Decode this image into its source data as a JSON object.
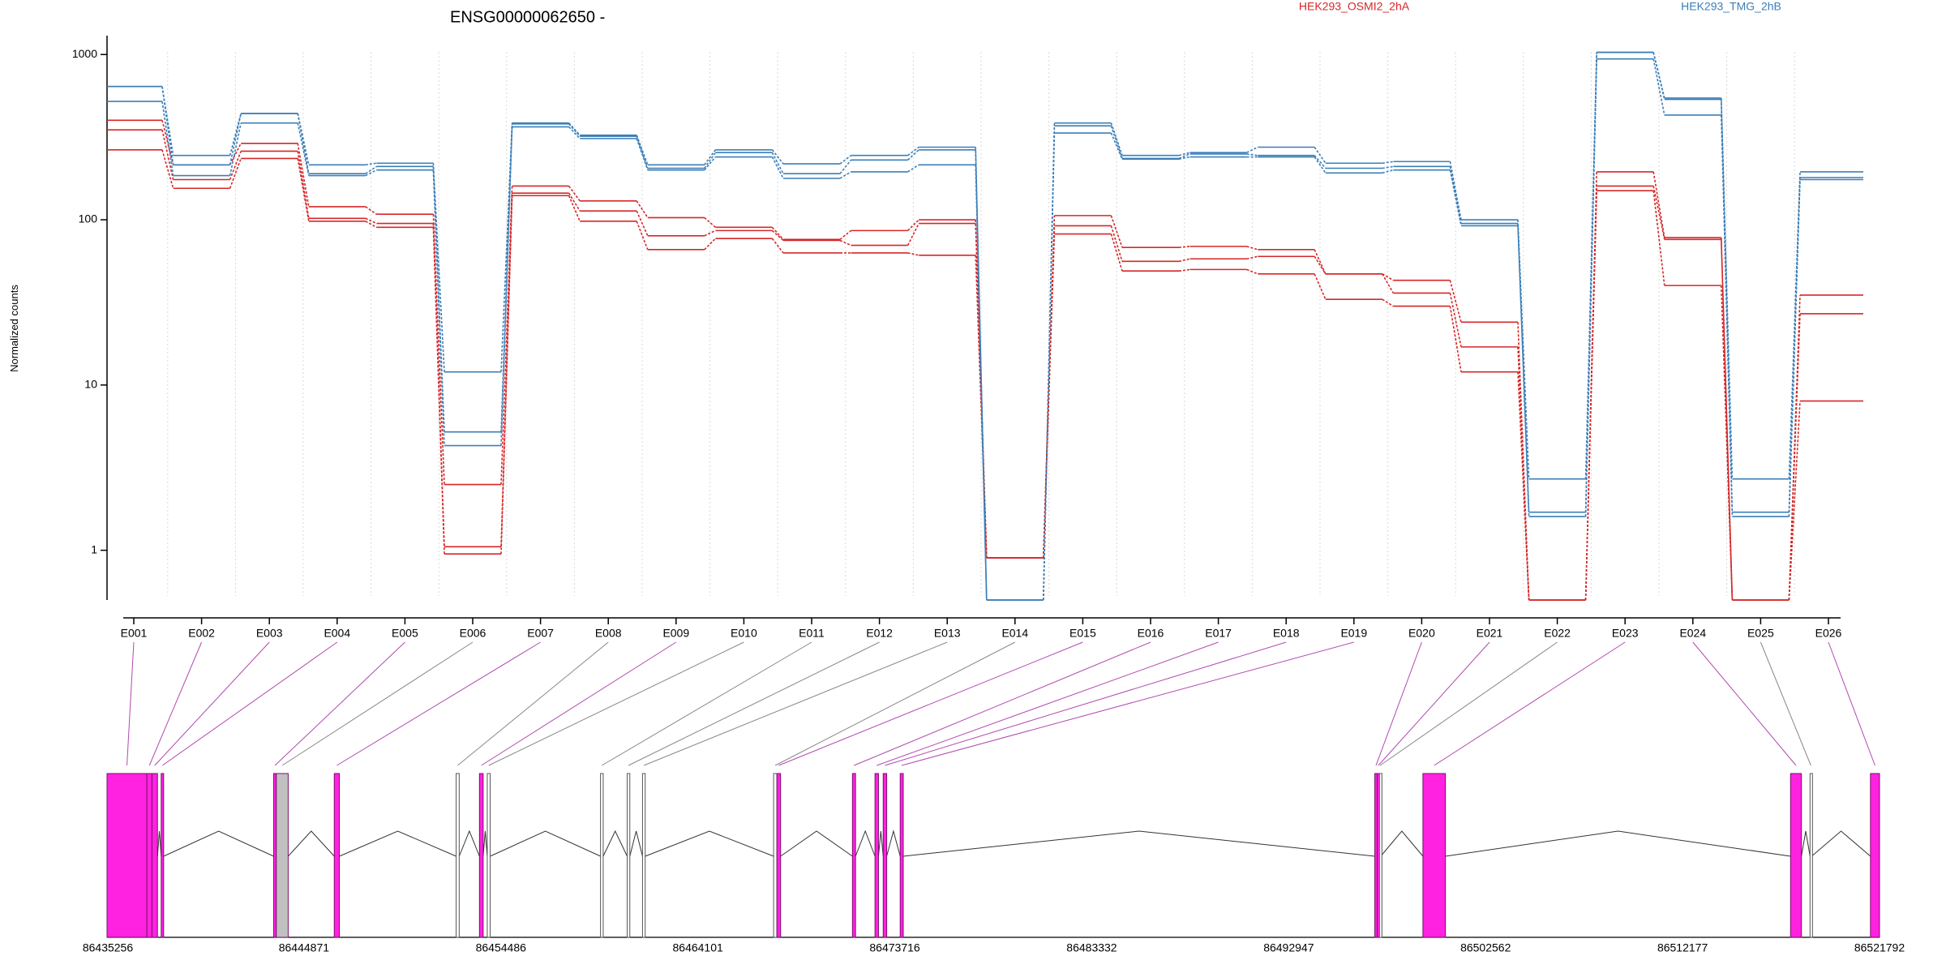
{
  "chart_data": {
    "type": "line",
    "title": "ENSG00000062650 -",
    "ylabel": "Normalized counts",
    "xlabel": "",
    "yscale": "log",
    "ylim": [
      0.5,
      1300
    ],
    "yticks": [
      {
        "value": 1,
        "label": "1"
      },
      {
        "value": 10,
        "label": "10"
      },
      {
        "value": 100,
        "label": "100"
      },
      {
        "value": 1000,
        "label": "1000"
      }
    ],
    "grid": "vertical-dotted",
    "categories": [
      "E001",
      "E002",
      "E003",
      "E004",
      "E005",
      "E006",
      "E007",
      "E008",
      "E009",
      "E010",
      "E011",
      "E012",
      "E013",
      "E014",
      "E015",
      "E016",
      "E017",
      "E018",
      "E019",
      "E020",
      "E021",
      "E022",
      "E023",
      "E024",
      "E025",
      "E026"
    ],
    "series": [
      {
        "name": "HEK293_OSMI2_2hA",
        "color": "#d62728",
        "values": [
          400,
          215,
          290,
          120,
          108,
          2.5,
          160,
          130,
          103,
          90,
          76,
          86,
          100,
          0.9,
          106,
          68,
          69,
          66,
          47,
          43,
          24,
          0.5,
          195,
          78,
          0.5,
          35
        ]
      },
      {
        "name": "",
        "color": "#d62728",
        "values": [
          350,
          175,
          260,
          102,
          95,
          1.05,
          145,
          113,
          80,
          86,
          75,
          70,
          95,
          0.9,
          92,
          56,
          58,
          60,
          47,
          36,
          17,
          0.5,
          160,
          76,
          0.5,
          27
        ]
      },
      {
        "name": "",
        "color": "#d62728",
        "values": [
          265,
          155,
          235,
          98,
          90,
          0.95,
          140,
          98,
          66,
          77,
          63,
          63,
          61,
          0.9,
          82,
          49,
          50,
          47,
          33,
          30,
          12,
          0.5,
          150,
          40,
          0.5,
          8
        ]
      },
      {
        "name": "HEK293_TMG_2hB",
        "color": "#3b7fb8",
        "values": [
          640,
          245,
          440,
          215,
          220,
          12,
          385,
          325,
          215,
          265,
          218,
          245,
          275,
          0.5,
          385,
          245,
          255,
          275,
          220,
          225,
          100,
          2.7,
          1030,
          545,
          2.7,
          195
        ]
      },
      {
        "name": "",
        "color": "#3b7fb8",
        "values": [
          640,
          215,
          440,
          190,
          210,
          5.2,
          380,
          320,
          205,
          255,
          190,
          230,
          265,
          0.5,
          370,
          235,
          250,
          245,
          205,
          210,
          95,
          1.7,
          1030,
          535,
          1.7,
          180
        ]
      },
      {
        "name": "",
        "color": "#3b7fb8",
        "values": [
          520,
          185,
          385,
          185,
          200,
          4.3,
          365,
          310,
          200,
          240,
          178,
          195,
          215,
          0.5,
          335,
          233,
          240,
          240,
          192,
          200,
          92,
          1.6,
          940,
          430,
          1.6,
          175
        ]
      }
    ],
    "legend": "top",
    "genome": {
      "tick_labels": [
        "86435256",
        "86444871",
        "86454486",
        "86464101",
        "86473716",
        "86483332",
        "86492947",
        "86502562",
        "86512177",
        "86521792"
      ],
      "start": 86435256,
      "end": 86521792
    },
    "exon_tracks": [
      {
        "exon": "E001",
        "start": 86435256,
        "end": 86437200,
        "color": "#ff22e0"
      },
      {
        "exon": "E002",
        "start": 86437200,
        "end": 86437450,
        "color": "#ff22e0"
      },
      {
        "exon": "E003",
        "start": 86437450,
        "end": 86437720,
        "color": "#ff22e0"
      },
      {
        "exon": "E004",
        "start": 86437900,
        "end": 86438020,
        "color": "#ff22e0"
      },
      {
        "exon": "E005",
        "start": 86443390,
        "end": 86443520,
        "color": "#ff22e0"
      },
      {
        "exon": "E006",
        "start": 86443520,
        "end": 86444100,
        "color": "#c0c0c0"
      },
      {
        "exon": "E007",
        "start": 86446350,
        "end": 86446600,
        "color": "#ff22e0"
      },
      {
        "exon": "E008",
        "start": 86452300,
        "end": 86452450,
        "color": "#ffffff"
      },
      {
        "exon": "E009",
        "start": 86453440,
        "end": 86453620,
        "color": "#ff22e0"
      },
      {
        "exon": "E010",
        "start": 86453820,
        "end": 86453960,
        "color": "#ffffff"
      },
      {
        "exon": "E011",
        "start": 86459350,
        "end": 86459480,
        "color": "#ffffff"
      },
      {
        "exon": "E012",
        "start": 86460650,
        "end": 86460780,
        "color": "#ffffff"
      },
      {
        "exon": "E013",
        "start": 86461400,
        "end": 86461530,
        "color": "#ffffff"
      },
      {
        "exon": "E014",
        "start": 86467800,
        "end": 86467960,
        "color": "#ffffff"
      },
      {
        "exon": "E015",
        "start": 86467960,
        "end": 86468140,
        "color": "#ff22e0"
      },
      {
        "exon": "E016",
        "start": 86471650,
        "end": 86471800,
        "color": "#ff22e0"
      },
      {
        "exon": "E017",
        "start": 86472750,
        "end": 86472920,
        "color": "#ff22e0"
      },
      {
        "exon": "E018",
        "start": 86473150,
        "end": 86473320,
        "color": "#ff22e0"
      },
      {
        "exon": "E019",
        "start": 86473980,
        "end": 86474130,
        "color": "#ff22e0"
      },
      {
        "exon": "E020",
        "start": 86497150,
        "end": 86497270,
        "color": "#ff22e0"
      },
      {
        "exon": "E021",
        "start": 86497270,
        "end": 86497380,
        "color": "#ff22e0"
      },
      {
        "exon": "E022",
        "start": 86497380,
        "end": 86497440,
        "color": "#ffffff"
      },
      {
        "exon": "E023",
        "start": 86499500,
        "end": 86500600,
        "color": "#ff22e0"
      },
      {
        "exon": "E024",
        "start": 86517450,
        "end": 86517980,
        "color": "#ff22e0"
      },
      {
        "exon": "E025",
        "start": 86518400,
        "end": 86518480,
        "color": "#ffffff"
      },
      {
        "exon": "E026",
        "start": 86521350,
        "end": 86521792,
        "color": "#ff22e0"
      }
    ]
  }
}
